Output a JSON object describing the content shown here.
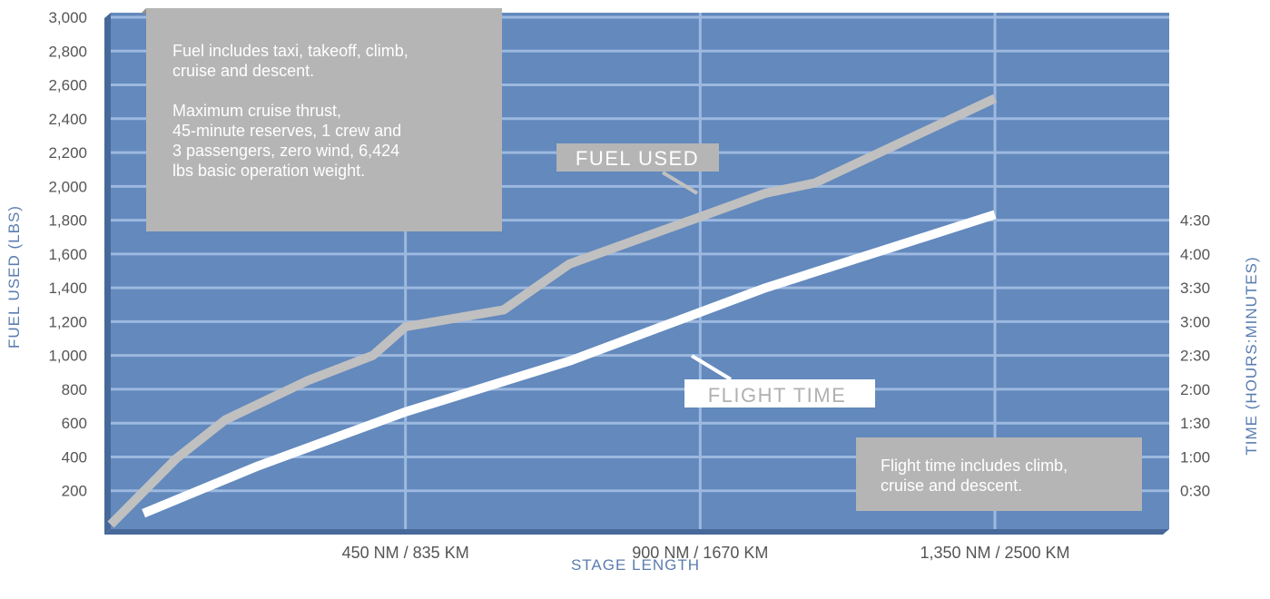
{
  "chart_data": {
    "type": "line",
    "xlabel": "STAGE LENGTH",
    "ylabel_left": "FUEL USED (LBS)",
    "ylabel_right": "TIME (HOURS:MINUTES)",
    "x_tick_labels": [
      "450 NM / 835 KM",
      "900 NM / 1670 KM",
      "1,350 NM / 2500 KM"
    ],
    "x_ticks_nm": [
      450,
      900,
      1350
    ],
    "x_range_nm": [
      0,
      1600
    ],
    "y_left_range": [
      0,
      3000
    ],
    "y_left_ticks": [
      "200",
      "400",
      "600",
      "800",
      "1,000",
      "1,200",
      "1,400",
      "1,600",
      "1,800",
      "2,000",
      "2,200",
      "2,400",
      "2,600",
      "2,800",
      "3,000"
    ],
    "y_right_ticks": [
      "0:30",
      "1:00",
      "1:30",
      "2:00",
      "2:30",
      "3:00",
      "3:30",
      "4:00",
      "4:30"
    ],
    "grid": true,
    "colors": {
      "plot_bg": "#6389bd",
      "plot_side": "#47699a",
      "grid": "#9db9df",
      "fuel_line": "#c0c0c0",
      "time_line": "#ffffff",
      "axis_text": "#555555",
      "axis_title": "#5a7db0",
      "note_bg": "#b5b5b5"
    },
    "series": [
      {
        "name": "FUEL USED",
        "axis": "left",
        "x": [
          0,
          100,
          175,
          300,
          400,
          450,
          600,
          700,
          900,
          1000,
          1075,
          1350
        ],
        "values": [
          0,
          390,
          620,
          850,
          1000,
          1170,
          1270,
          1540,
          1820,
          1960,
          2020,
          2520
        ]
      },
      {
        "name": "FLIGHT TIME",
        "axis": "right",
        "x": [
          50,
          225,
          450,
          700,
          1000,
          1350
        ],
        "values_minutes": [
          10,
          52,
          100,
          145,
          210,
          275
        ],
        "values": [
          "0:10",
          "0:52",
          "1:40",
          "2:25",
          "3:30",
          "4:35"
        ]
      }
    ],
    "annotations": {
      "fuel_note": "Fuel includes taxi, takeoff, climb, cruise and descent.",
      "fuel_note_details": "Maximum cruise thrust, 45-minute reserves, 1 crew and 3 passengers, zero wind, 6,424 lbs basic operation weight.",
      "time_note": "Flight time includes climb, cruise and descent.",
      "fuel_label": "FUEL USED",
      "time_label": "FLIGHT TIME"
    }
  }
}
